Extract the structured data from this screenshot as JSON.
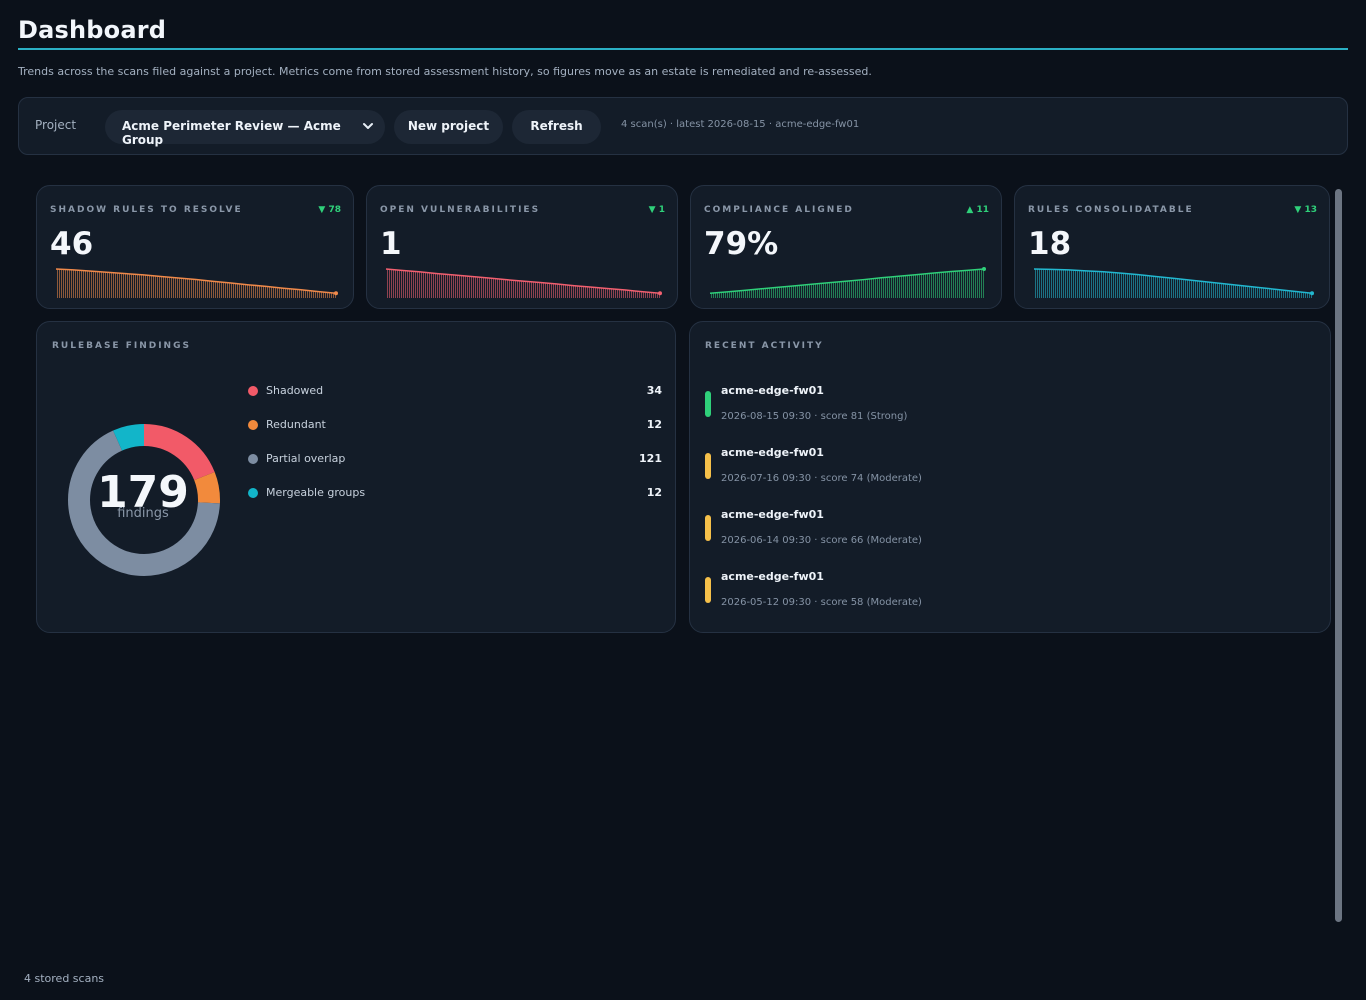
{
  "header": {
    "title": "Dashboard",
    "subtitle": "Trends across the scans filed against a project. Metrics come from stored assessment history, so figures move as an estate is remediated and re-assessed."
  },
  "project_bar": {
    "label": "Project",
    "selected_project": "Acme Perimeter Review — Acme Group",
    "new_project_label": "New project",
    "refresh_label": "Refresh",
    "scan_meta": "4 scan(s) · latest 2026-08-15 · acme-edge-fw01"
  },
  "metrics": [
    {
      "label": "SHADOW RULES TO RESOLVE",
      "value": "46",
      "delta": "▼ 78",
      "color": "#f08a4b",
      "trend": [
        124,
        121,
        117,
        113,
        109,
        105,
        100,
        95,
        90,
        84,
        79,
        73,
        68,
        62,
        57,
        51,
        46
      ]
    },
    {
      "label": "OPEN VULNERABILITIES",
      "value": "1",
      "delta": "▼ 1",
      "color": "#f26070",
      "trend": [
        2.0,
        1.94,
        1.88,
        1.81,
        1.75,
        1.69,
        1.63,
        1.56,
        1.5,
        1.44,
        1.38,
        1.31,
        1.25,
        1.19,
        1.13,
        1.06,
        1.0
      ]
    },
    {
      "label": "COMPLIANCE ALIGNED",
      "value": "79%",
      "delta": "▲ 11",
      "color": "#2fd07a",
      "trend": [
        68,
        68.6,
        69.3,
        70,
        70.7,
        71.4,
        72.1,
        72.8,
        73.5,
        74.2,
        75,
        75.7,
        76.4,
        77.1,
        77.8,
        78.4,
        79
      ]
    },
    {
      "label": "RULES CONSOLIDATABLE",
      "value": "18",
      "delta": "▼ 13",
      "color": "#22b8d0",
      "trend": [
        31,
        30.8,
        30.5,
        30,
        29.5,
        28.8,
        28,
        27,
        26,
        25,
        24,
        23,
        22,
        21,
        20,
        19,
        18
      ]
    }
  ],
  "findings": {
    "label": "RULEBASE FINDINGS",
    "total": "179",
    "total_caption": "findings",
    "items": [
      {
        "name": "Shadowed",
        "count": 34,
        "color": "#f25a68"
      },
      {
        "name": "Redundant",
        "count": 12,
        "color": "#f28a3c"
      },
      {
        "name": "Partial overlap",
        "count": 121,
        "color": "#7d8da2"
      },
      {
        "name": "Mergeable groups",
        "count": 12,
        "color": "#12b5c9"
      }
    ]
  },
  "activity": {
    "label": "RECENT ACTIVITY",
    "items": [
      {
        "host": "acme-edge-fw01",
        "meta": "2026-08-15 09:30 · score 81 (Strong)",
        "color": "#2fd07a"
      },
      {
        "host": "acme-edge-fw01",
        "meta": "2026-07-16 09:30 · score 74 (Moderate)",
        "color": "#f5c04a"
      },
      {
        "host": "acme-edge-fw01",
        "meta": "2026-06-14 09:30 · score 66 (Moderate)",
        "color": "#f5c04a"
      },
      {
        "host": "acme-edge-fw01",
        "meta": "2026-05-12 09:30 · score 58 (Moderate)",
        "color": "#f5c04a"
      }
    ]
  },
  "footer": {
    "text": "4 stored scans"
  }
}
